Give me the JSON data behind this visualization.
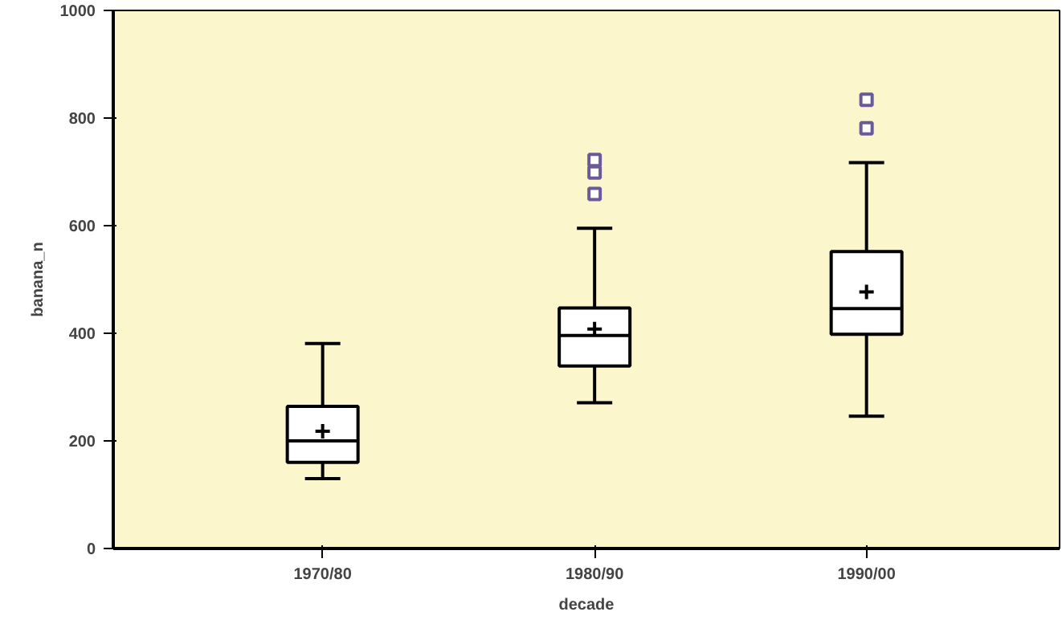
{
  "chart_data": {
    "type": "box",
    "xlabel": "decade",
    "ylabel": "banana_n",
    "categories": [
      "1970/80",
      "1980/90",
      "1990/00"
    ],
    "boxes": [
      {
        "low": 130,
        "q1": 160,
        "median": 200,
        "q3": 264,
        "high": 381,
        "mean": 218
      },
      {
        "low": 271,
        "q1": 339,
        "median": 396,
        "q3": 447,
        "high": 595,
        "mean": 408,
        "outliers": [
          659,
          699,
          722
        ]
      },
      {
        "low": 246,
        "q1": 398,
        "median": 446,
        "q3": 552,
        "high": 717,
        "mean": 477,
        "outliers": [
          781,
          834
        ]
      }
    ],
    "ylim": [
      0,
      1000
    ],
    "yticks": [
      0,
      200,
      400,
      600,
      800,
      1000
    ],
    "grid": false,
    "color": "#ffffff"
  }
}
